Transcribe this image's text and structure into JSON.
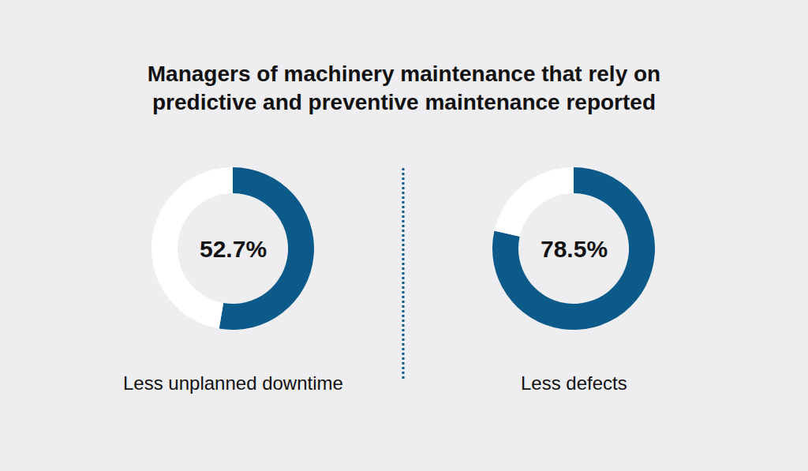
{
  "chart_data": {
    "type": "donut",
    "title": "Managers of machinery maintenance that rely on predictive and preventive maintenance reported",
    "categories": [
      "Less unplanned downtime",
      "Less defects"
    ],
    "values": [
      52.7,
      78.5
    ],
    "value_labels": [
      "52.7%",
      "78.5%"
    ],
    "ylim": [
      0,
      100
    ],
    "color": "#0b5a8a",
    "data_labels": true
  }
}
